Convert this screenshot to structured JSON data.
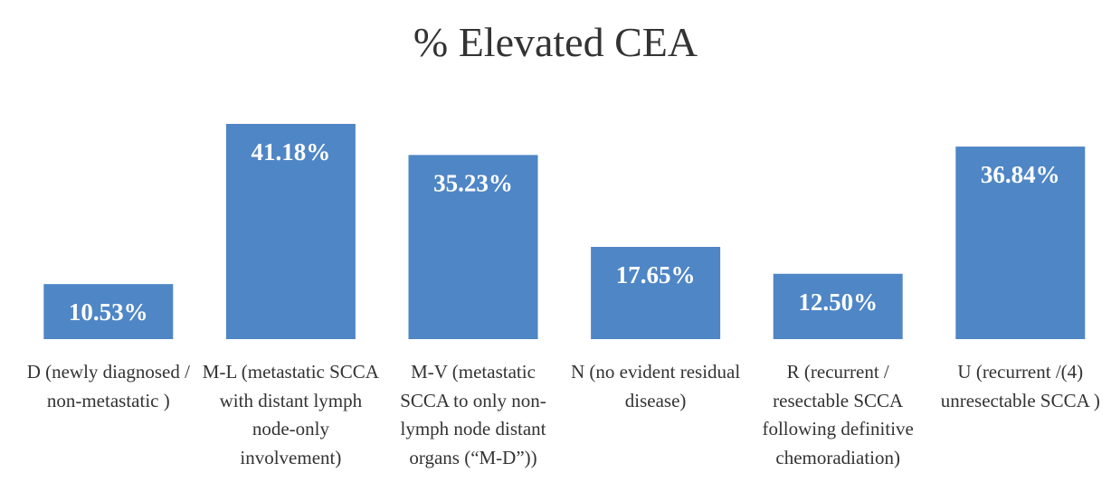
{
  "chart_data": {
    "type": "bar",
    "title": "% Elevated CEA",
    "categories": [
      "D (newly diagnosed / non-metastatic )",
      "M-L (metastatic SCCA with distant lymph node-only involvement)",
      "M-V (metastatic SCCA to only non-lymph node distant organs (“M-D”))",
      "N (no evident residual disease)",
      "R (recurrent / resectable SCCA following definitive chemoradiation)",
      "U (recurrent /(4) unresectable SCCA )"
    ],
    "values": [
      10.53,
      41.18,
      35.23,
      17.65,
      12.5,
      36.84
    ],
    "value_labels": [
      "10.53%",
      "41.18%",
      "35.23%",
      "17.65%",
      "12.50%",
      "36.84%"
    ],
    "color": "#4f86c6"
  }
}
